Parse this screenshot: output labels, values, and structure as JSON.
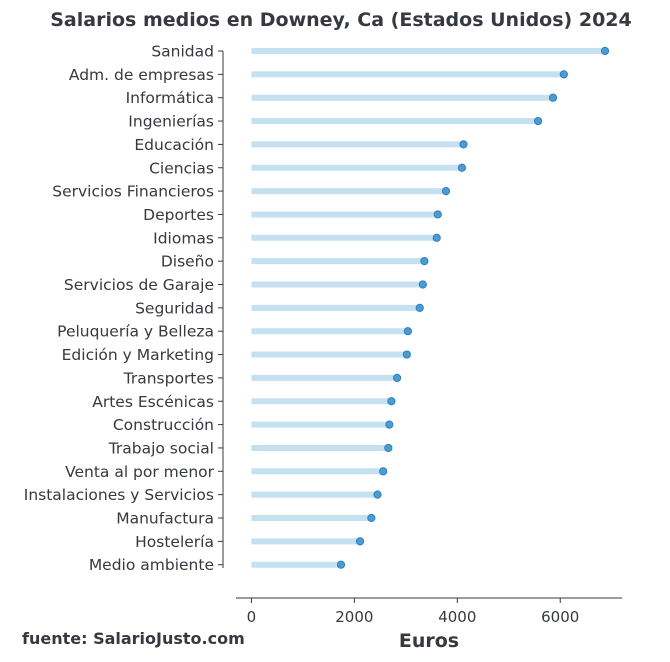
{
  "chart_data": {
    "type": "lollipop",
    "title": "Salarios medios en Downey, Ca (Estados Unidos) 2024",
    "xlabel": "Euros",
    "source": "fuente: SalarioJusto.com",
    "xlim": [
      -300,
      7200
    ],
    "xticks": [
      0,
      2000,
      4000,
      6000
    ],
    "categories": [
      "Sanidad",
      "Adm. de empresas",
      "Informática",
      "Ingenierías",
      "Educación",
      "Ciencias",
      "Servicios Financieros",
      "Deportes",
      "Idiomas",
      "Diseño",
      "Servicios de Garaje",
      "Seguridad",
      "Peluquería y Belleza",
      "Edición y Marketing",
      "Transportes",
      "Artes Escénicas",
      "Construcción",
      "Trabajo social",
      "Venta al por menor",
      "Instalaciones y Servicios",
      "Manufactura",
      "Hostelería",
      "Medio ambiente"
    ],
    "values": [
      6870,
      6070,
      5860,
      5570,
      4120,
      4090,
      3780,
      3620,
      3600,
      3360,
      3330,
      3270,
      3040,
      3020,
      2830,
      2720,
      2680,
      2660,
      2560,
      2450,
      2330,
      2110,
      1740
    ],
    "colors": {
      "stem": "#c5e0f1",
      "dot": "#4b9cd3",
      "text": "#36393f"
    },
    "grid": false
  }
}
